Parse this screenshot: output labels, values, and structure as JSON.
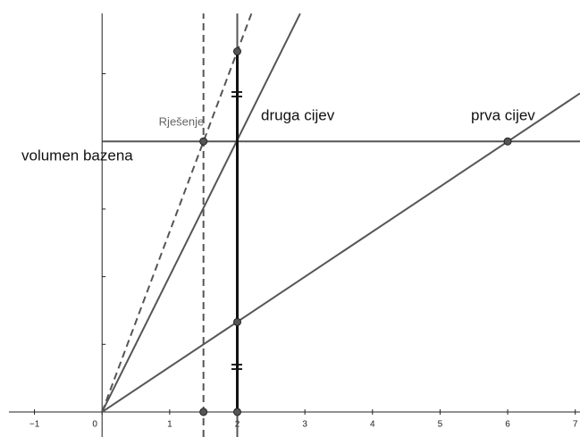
{
  "chart_data": {
    "type": "line",
    "xlim": [
      -1.51,
      7.07
    ],
    "ylim": [
      -0.37,
      6.09
    ],
    "xticks": [
      {
        "value": -1,
        "label": "−1"
      },
      0,
      1,
      2,
      3,
      4,
      5,
      6,
      7
    ],
    "y_tick_marks": [
      1,
      2,
      3,
      4,
      5
    ],
    "color": "#555555",
    "series": [
      {
        "name": "volumen bazena",
        "x": [
          0,
          7.07
        ],
        "y": [
          4,
          4
        ]
      },
      {
        "name": "druga cijev",
        "x": [
          0,
          2.93
        ],
        "y": [
          0,
          5.89
        ]
      },
      {
        "name": "prva cijev",
        "x": [
          0,
          7.07
        ],
        "y": [
          0,
          4.71
        ]
      },
      {
        "x": [
          0,
          2.21
        ],
        "y": [
          0,
          5.89
        ],
        "dash": true
      },
      {
        "x": [
          1.5,
          1.5
        ],
        "y": [
          -0.37,
          5.89
        ],
        "dash": true
      },
      {
        "x": [
          2,
          2
        ],
        "y": [
          -0.37,
          5.89
        ]
      },
      {
        "x": [
          2,
          2
        ],
        "y": [
          0,
          5.33
        ],
        "thick": true
      }
    ],
    "points": [
      {
        "x": 1.5,
        "y": 4,
        "label": "Rješenje"
      },
      {
        "x": 6,
        "y": 4
      },
      {
        "x": 2,
        "y": 5.33
      },
      {
        "x": 2,
        "y": 1.33
      },
      {
        "x": 1.5,
        "y": 0
      },
      {
        "x": 2,
        "y": 0
      }
    ]
  }
}
